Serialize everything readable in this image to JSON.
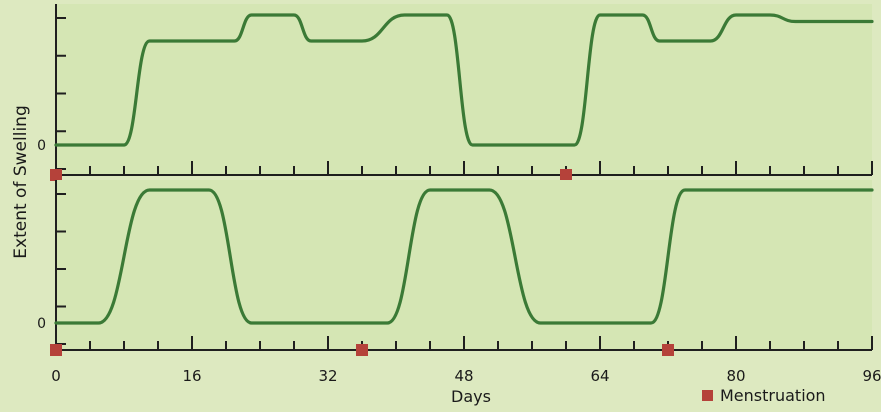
{
  "chart_data": [
    {
      "type": "line",
      "panel": "top",
      "xlim": [
        0,
        96
      ],
      "x_ticks": [
        0,
        16,
        32,
        48,
        64,
        80,
        96
      ],
      "y_ticks": [
        {
          "value": 0,
          "label": "0"
        }
      ],
      "series": [
        {
          "color": "#3b7a36",
          "x": [
            0,
            8,
            11,
            21,
            23,
            28,
            30,
            36,
            41,
            46,
            49,
            61,
            64,
            69,
            71,
            77,
            80,
            84,
            87,
            96
          ],
          "y": [
            0,
            0,
            0.8,
            0.8,
            1,
            1,
            0.8,
            0.8,
            1,
            1,
            0,
            0,
            1,
            1,
            0.8,
            0.8,
            1,
            1,
            0.95,
            0.95
          ]
        }
      ],
      "markers": {
        "name": "Menstruation",
        "color": "#b5423a",
        "x": [
          0,
          60
        ]
      }
    },
    {
      "type": "line",
      "panel": "bottom",
      "xlim": [
        0,
        96
      ],
      "x_ticks": [
        0,
        16,
        32,
        48,
        64,
        80,
        96
      ],
      "y_ticks": [
        {
          "value": 0,
          "label": "0"
        }
      ],
      "series": [
        {
          "color": "#3b7a36",
          "x": [
            0,
            5,
            11,
            18,
            23,
            39,
            44,
            51,
            57,
            70,
            74,
            96
          ],
          "y": [
            0,
            0,
            1,
            1,
            0,
            0,
            1,
            1,
            0,
            0,
            1,
            1
          ]
        }
      ],
      "markers": {
        "name": "Menstruation",
        "color": "#b5423a",
        "x": [
          0,
          36,
          72
        ]
      }
    }
  ],
  "labels": {
    "y_axis": "Extent of Swelling",
    "x_axis": "Days",
    "tick_labels": [
      "0",
      "16",
      "32",
      "48",
      "64",
      "80",
      "96"
    ],
    "zero_label": "0",
    "legend_label": "Menstruation"
  },
  "colors": {
    "line": "#3b7a36",
    "marker": "#b5423a",
    "axis": "#1f1f1f",
    "panel": "#d5e6b4"
  }
}
